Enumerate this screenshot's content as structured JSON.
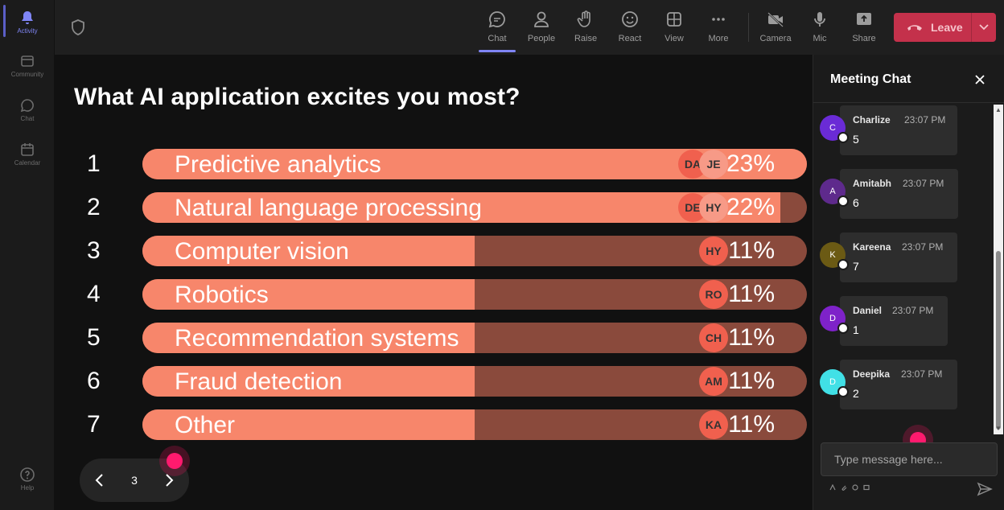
{
  "rail": {
    "items": [
      {
        "label": "Activity",
        "icon": "bell-icon"
      },
      {
        "label": "Community",
        "icon": "community-icon"
      },
      {
        "label": "Chat",
        "icon": "chat-icon"
      },
      {
        "label": "Calendar",
        "icon": "calendar-icon"
      },
      {
        "label": "Help",
        "icon": "help-icon"
      }
    ]
  },
  "topbar": {
    "buttons": [
      {
        "label": "Chat",
        "icon": "chat-icon"
      },
      {
        "label": "People",
        "icon": "people-icon"
      },
      {
        "label": "Raise",
        "icon": "hand-icon"
      },
      {
        "label": "React",
        "icon": "smile-icon"
      },
      {
        "label": "View",
        "icon": "grid-icon"
      },
      {
        "label": "More",
        "icon": "more-icon"
      },
      {
        "label": "Camera",
        "icon": "camera-off-icon"
      },
      {
        "label": "Mic",
        "icon": "mic-icon"
      },
      {
        "label": "Share",
        "icon": "share-icon"
      }
    ],
    "leave_label": "Leave"
  },
  "poll": {
    "title": "What AI application excites you most?",
    "options": [
      {
        "num": "1",
        "label": "Predictive analytics",
        "percent": "23%",
        "fraction": 1.0,
        "avatars": [
          "DA",
          "JE"
        ]
      },
      {
        "num": "2",
        "label": "Natural language processing",
        "percent": "22%",
        "fraction": 0.96,
        "avatars": [
          "DE",
          "HY"
        ]
      },
      {
        "num": "3",
        "label": "Computer vision",
        "percent": "11%",
        "fraction": 0.5,
        "avatars": [
          "HY"
        ]
      },
      {
        "num": "4",
        "label": "Robotics",
        "percent": "11%",
        "fraction": 0.5,
        "avatars": [
          "RO"
        ]
      },
      {
        "num": "5",
        "label": "Recommendation systems",
        "percent": "11%",
        "fraction": 0.5,
        "avatars": [
          "CH"
        ]
      },
      {
        "num": "6",
        "label": "Fraud detection",
        "percent": "11%",
        "fraction": 0.5,
        "avatars": [
          "AM"
        ]
      },
      {
        "num": "7",
        "label": "Other",
        "percent": "11%",
        "fraction": 0.5,
        "avatars": [
          "KA"
        ]
      }
    ],
    "page": "3"
  },
  "chat": {
    "title": "Meeting Chat",
    "messages": [
      {
        "initial": "C",
        "name": "Charlize",
        "time": "23:07 PM",
        "text": "5",
        "color": "#6a2bd6"
      },
      {
        "initial": "A",
        "name": "Amitabh",
        "time": "23:07 PM",
        "text": "6",
        "color": "#5e2a8c"
      },
      {
        "initial": "K",
        "name": "Kareena",
        "time": "23:07 PM",
        "text": "7",
        "color": "#6b5a14"
      },
      {
        "initial": "D",
        "name": "Daniel",
        "time": "23:07 PM",
        "text": "1",
        "color": "#7e22c9"
      },
      {
        "initial": "D",
        "name": "Deepika",
        "time": "23:07 PM",
        "text": "2",
        "color": "#41e0e6"
      }
    ],
    "input_placeholder": "Type message here..."
  }
}
